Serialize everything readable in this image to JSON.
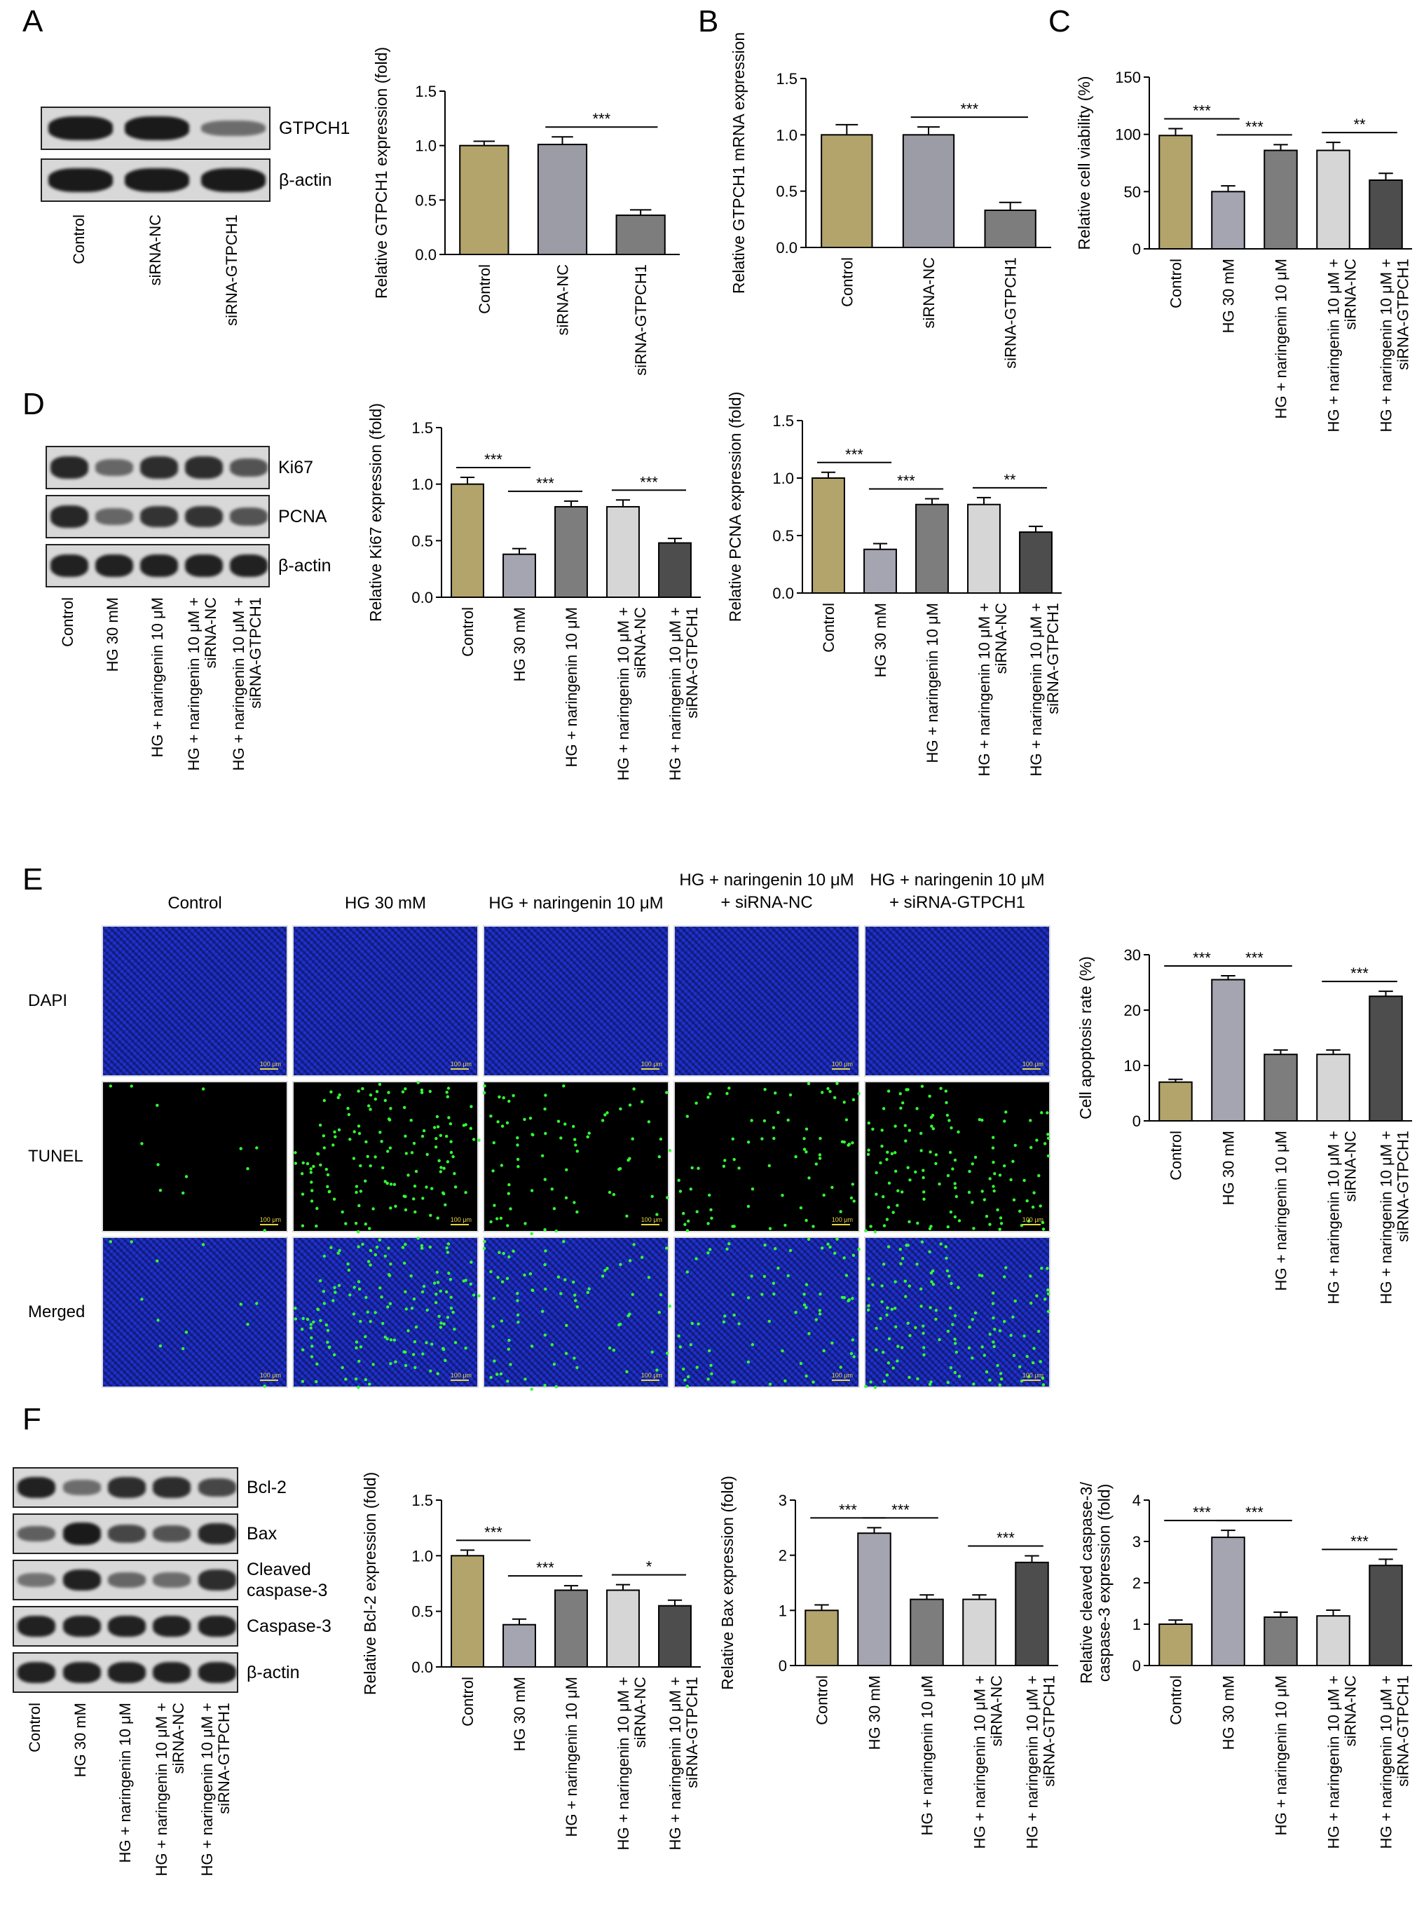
{
  "colors": {
    "control": "#b3a46c",
    "hg": "#a5a5b2",
    "naringenin": "#7d7d7d",
    "naringenin_nc": "#d6d6d6",
    "naringenin_gtpch1": "#4d4d4d",
    "sirna_nc": "#9c9ca6",
    "sirna_gtpch1": "#7d7d7d",
    "blot_band": "#141414",
    "dapi": "#1a2ab4",
    "tunel": "#33ff33"
  },
  "panels": {
    "A": "A",
    "B": "B",
    "C": "C",
    "D": "D",
    "E": "E",
    "F": "F"
  },
  "lane_sets": {
    "three": [
      "Control",
      "siRNA-NC",
      "siRNA-GTPCH1"
    ],
    "five": [
      "Control",
      "HG 30 mM",
      "HG + naringenin 10 μM",
      "HG + naringenin 10 μM +\nsiRNA-NC",
      "HG + naringenin 10 μM +\nsiRNA-GTPCH1"
    ]
  },
  "blots": {
    "A": {
      "bands": [
        "GTPCH1",
        "β-actin"
      ]
    },
    "D": {
      "bands": [
        "Ki67",
        "PCNA",
        "β-actin"
      ]
    },
    "F": {
      "bands": [
        "Bcl-2",
        "Bax",
        "Cleaved\ncaspase-3",
        "Caspase-3",
        "β-actin"
      ]
    }
  },
  "microscopy": {
    "columns": [
      "Control",
      "HG 30 mM",
      "HG + naringenin 10 μM",
      "HG + naringenin 10 μM\n+ siRNA-NC",
      "HG + naringenin 10 μM\n+ siRNA-GTPCH1"
    ],
    "rows": [
      "DAPI",
      "TUNEL",
      "Merged"
    ],
    "scale_bar": "100 μm",
    "tunel_density": [
      0.05,
      0.55,
      0.3,
      0.3,
      0.5
    ]
  },
  "chart_data": [
    {
      "id": "A",
      "type": "bar",
      "categories": [
        "Control",
        "siRNA-NC",
        "siRNA-GTPCH1"
      ],
      "values": [
        1.0,
        1.01,
        0.36
      ],
      "errors": [
        0.04,
        0.07,
        0.05
      ],
      "ylabel": "Relative GTPCH1 expression (fold)",
      "ylim": [
        0,
        1.5
      ],
      "yticks": [
        "0.0",
        "0.5",
        "1.0",
        "1.5"
      ],
      "significance": [
        {
          "from": 1,
          "to": 2,
          "label": "***"
        }
      ]
    },
    {
      "id": "B",
      "type": "bar",
      "categories": [
        "Control",
        "siRNA-NC",
        "siRNA-GTPCH1"
      ],
      "values": [
        1.0,
        1.0,
        0.33
      ],
      "errors": [
        0.09,
        0.07,
        0.07
      ],
      "ylabel": "Relative GTPCH1 mRNA expression",
      "ylim": [
        0,
        1.5
      ],
      "yticks": [
        "0.0",
        "0.5",
        "1.0",
        "1.5"
      ],
      "significance": [
        {
          "from": 1,
          "to": 2,
          "label": "***"
        }
      ]
    },
    {
      "id": "C",
      "type": "bar",
      "categories": [
        "Control",
        "HG 30 mM",
        "HG + naringenin 10 μM",
        "HG + naringenin 10 μM +\nsiRNA-NC",
        "HG + naringenin 10 μM +\nsiRNA-GTPCH1"
      ],
      "values": [
        99,
        50,
        86,
        86,
        60
      ],
      "errors": [
        6,
        5,
        5,
        7,
        6
      ],
      "ylabel": "Relative cell viability (%)",
      "ylim": [
        0,
        150
      ],
      "yticks": [
        "0",
        "50",
        "100",
        "150"
      ],
      "significance": [
        {
          "from": 0,
          "to": 1,
          "label": "***"
        },
        {
          "from": 1,
          "to": 2,
          "label": "***"
        },
        {
          "from": 3,
          "to": 4,
          "label": "**"
        }
      ]
    },
    {
      "id": "D1",
      "type": "bar",
      "categories": [
        "Control",
        "HG 30 mM",
        "HG + naringenin 10 μM",
        "HG + naringenin 10 μM +\nsiRNA-NC",
        "HG + naringenin 10 μM +\nsiRNA-GTPCH1"
      ],
      "values": [
        1.0,
        0.38,
        0.8,
        0.8,
        0.48
      ],
      "errors": [
        0.06,
        0.05,
        0.05,
        0.06,
        0.04
      ],
      "ylabel": "Relative Ki67 expression (fold)",
      "ylim": [
        0,
        1.5
      ],
      "yticks": [
        "0.0",
        "0.5",
        "1.0",
        "1.5"
      ],
      "significance": [
        {
          "from": 0,
          "to": 1,
          "label": "***"
        },
        {
          "from": 1,
          "to": 2,
          "label": "***"
        },
        {
          "from": 3,
          "to": 4,
          "label": "***"
        }
      ]
    },
    {
      "id": "D2",
      "type": "bar",
      "categories": [
        "Control",
        "HG 30 mM",
        "HG + naringenin 10 μM",
        "HG + naringenin 10 μM +\nsiRNA-NC",
        "HG + naringenin 10 μM +\nsiRNA-GTPCH1"
      ],
      "values": [
        1.0,
        0.38,
        0.77,
        0.77,
        0.53
      ],
      "errors": [
        0.05,
        0.05,
        0.05,
        0.06,
        0.05
      ],
      "ylabel": "Relative PCNA expression (fold)",
      "ylim": [
        0,
        1.5
      ],
      "yticks": [
        "0.0",
        "0.5",
        "1.0",
        "1.5"
      ],
      "significance": [
        {
          "from": 0,
          "to": 1,
          "label": "***"
        },
        {
          "from": 1,
          "to": 2,
          "label": "***"
        },
        {
          "from": 3,
          "to": 4,
          "label": "**"
        }
      ]
    },
    {
      "id": "E",
      "type": "bar",
      "categories": [
        "Control",
        "HG 30 mM",
        "HG + naringenin 10 μM",
        "HG + naringenin 10 μM +\nsiRNA-NC",
        "HG + naringenin 10 μM +\nsiRNA-GTPCH1"
      ],
      "values": [
        7,
        25.5,
        12,
        12,
        22.5
      ],
      "errors": [
        0.5,
        0.7,
        0.8,
        0.8,
        0.9
      ],
      "ylabel": "Cell apoptosis rate (%)",
      "ylim": [
        0,
        30
      ],
      "yticks": [
        "0",
        "10",
        "20",
        "30"
      ],
      "significance": [
        {
          "from": 0,
          "to": 1,
          "label": "***"
        },
        {
          "from": 1,
          "to": 2,
          "label": "***"
        },
        {
          "from": 3,
          "to": 4,
          "label": "***"
        }
      ]
    },
    {
      "id": "F1",
      "type": "bar",
      "categories": [
        "Control",
        "HG 30 mM",
        "HG + naringenin 10 μM",
        "HG + naringenin 10 μM +\nsiRNA-NC",
        "HG + naringenin 10 μM +\nsiRNA-GTPCH1"
      ],
      "values": [
        1.0,
        0.38,
        0.69,
        0.69,
        0.55
      ],
      "errors": [
        0.05,
        0.05,
        0.04,
        0.05,
        0.05
      ],
      "ylabel": "Relative Bcl-2 expression (fold)",
      "ylim": [
        0,
        1.5
      ],
      "yticks": [
        "0.0",
        "0.5",
        "1.0",
        "1.5"
      ],
      "significance": [
        {
          "from": 0,
          "to": 1,
          "label": "***"
        },
        {
          "from": 1,
          "to": 2,
          "label": "***"
        },
        {
          "from": 3,
          "to": 4,
          "label": "*"
        }
      ]
    },
    {
      "id": "F2",
      "type": "bar",
      "categories": [
        "Control",
        "HG 30 mM",
        "HG + naringenin 10 μM",
        "HG + naringenin 10 μM +\nsiRNA-NC",
        "HG + naringenin 10 μM +\nsiRNA-GTPCH1"
      ],
      "values": [
        1.0,
        2.4,
        1.2,
        1.2,
        1.87
      ],
      "errors": [
        0.1,
        0.1,
        0.08,
        0.08,
        0.12
      ],
      "ylabel": "Relative Bax expression (fold)",
      "ylim": [
        0,
        3
      ],
      "yticks": [
        "0",
        "1",
        "2",
        "3"
      ],
      "significance": [
        {
          "from": 0,
          "to": 1,
          "label": "***"
        },
        {
          "from": 1,
          "to": 2,
          "label": "***"
        },
        {
          "from": 3,
          "to": 4,
          "label": "***"
        }
      ]
    },
    {
      "id": "F3",
      "type": "bar",
      "categories": [
        "Control",
        "HG 30 mM",
        "HG + naringenin 10 μM",
        "HG + naringenin 10 μM +\nsiRNA-NC",
        "HG + naringenin 10 μM +\nsiRNA-GTPCH1"
      ],
      "values": [
        1.0,
        3.1,
        1.17,
        1.2,
        2.42
      ],
      "errors": [
        0.1,
        0.17,
        0.12,
        0.14,
        0.15
      ],
      "ylabel": "Relative cleaved caspase-3/\ncaspase-3 expression (fold)",
      "ylim": [
        0,
        4
      ],
      "yticks": [
        "0",
        "1",
        "2",
        "3",
        "4"
      ],
      "significance": [
        {
          "from": 0,
          "to": 1,
          "label": "***"
        },
        {
          "from": 1,
          "to": 2,
          "label": "***"
        },
        {
          "from": 3,
          "to": 4,
          "label": "***"
        }
      ]
    }
  ]
}
